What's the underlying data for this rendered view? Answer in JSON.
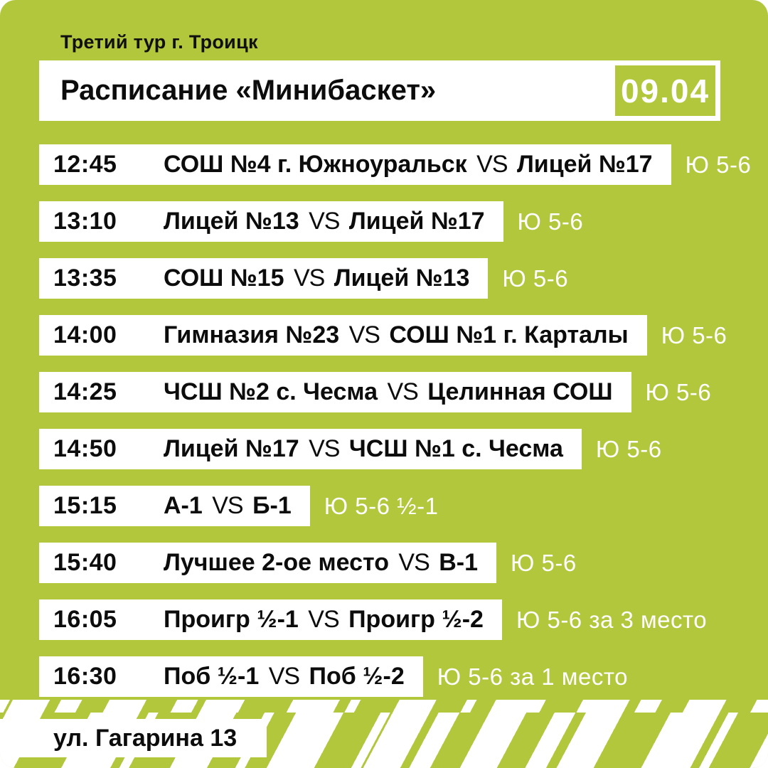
{
  "poster": {
    "tour_label": "Третий тур г. Троицк",
    "title": "Расписание «Минибаскет»",
    "date": "09.04",
    "vs": "VS",
    "address": "ул. Гагарина 13"
  },
  "schedule": {
    "rows": [
      {
        "time": "12:45",
        "team_a": "СОШ №4 г. Южноуральск",
        "team_b": "Лицей №17",
        "division": "Ю 5-6"
      },
      {
        "time": "13:10",
        "team_a": "Лицей №13",
        "team_b": "Лицей №17",
        "division": "Ю 5-6"
      },
      {
        "time": "13:35",
        "team_a": "СОШ №15",
        "team_b": "Лицей №13",
        "division": "Ю 5-6"
      },
      {
        "time": "14:00",
        "team_a": "Гимназия №23",
        "team_b": "СОШ №1 г. Карталы",
        "division": "Ю 5-6"
      },
      {
        "time": "14:25",
        "team_a": "ЧСШ №2 с. Чесма",
        "team_b": "Целинная СОШ",
        "division": "Ю 5-6"
      },
      {
        "time": "14:50",
        "team_a": "Лицей №17",
        "team_b": "ЧСШ №1 с. Чесма",
        "division": "Ю 5-6"
      },
      {
        "time": "15:15",
        "team_a": "А-1",
        "team_b": "Б-1",
        "division": "Ю 5-6 ½-1"
      },
      {
        "time": "15:40",
        "team_a": "Лучшее 2-ое место",
        "team_b": "В-1",
        "division": "Ю 5-6"
      },
      {
        "time": "16:05",
        "team_a": "Проигр ½-1",
        "team_b": "Проигр ½-2",
        "division": "Ю 5-6 за 3 место"
      },
      {
        "time": "16:30",
        "team_a": "Поб ½-1",
        "team_b": "Поб ½-2",
        "division": "Ю 5-6 за 1 место"
      }
    ]
  },
  "colors": {
    "background": "#b3c73c",
    "panel": "#ffffff",
    "text": "#0c0c0c",
    "division_text": "#ffffff"
  }
}
